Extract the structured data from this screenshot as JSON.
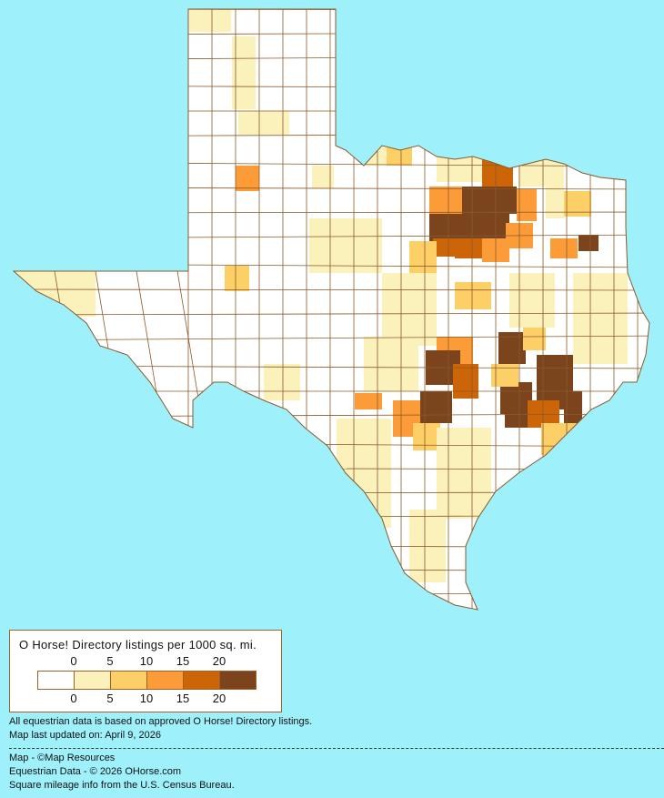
{
  "legend": {
    "title": "O Horse! Directory listings per 1000 sq. mi.",
    "ticks": [
      "0",
      "5",
      "10",
      "15",
      "20"
    ],
    "colors": [
      "#ffffff",
      "#fbf1bb",
      "#fdcf67",
      "#fb9c38",
      "#cc6508",
      "#7b441d"
    ]
  },
  "notes": {
    "data_basis": "All equestrian data is based on approved O Horse! Directory listings.",
    "updated": "Map last updated on: April 9, 2026"
  },
  "credits": {
    "map": "Map - ©Map Resources",
    "data": "Equestrian Data - © 2026 OHorse.com",
    "census": "Square mileage info from the U.S. Census Bureau."
  },
  "colors": {
    "background": "#9ef0fb",
    "border": "#8b5a2b"
  }
}
